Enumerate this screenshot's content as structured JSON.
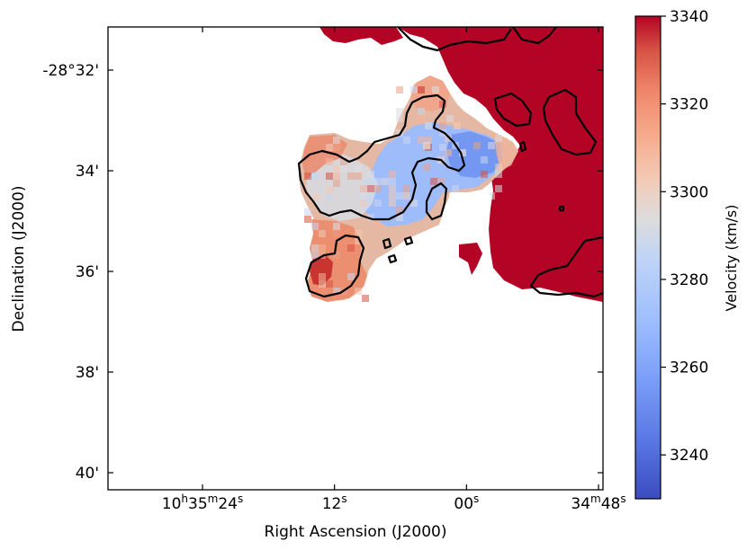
{
  "chart_data": {
    "type": "heatmap",
    "title": "",
    "xlabel": "Right Ascension (J2000)",
    "ylabel": "Declination (J2000)",
    "x_ticks": [
      {
        "pre": "10",
        "h": "h",
        "m_val": "35",
        "m": "m",
        "s_val": "24",
        "s": "s",
        "sec": 24
      },
      {
        "pre": "",
        "h": "",
        "m_val": "",
        "m": "",
        "s_val": "12",
        "s": "s",
        "sec": 12
      },
      {
        "pre": "",
        "h": "",
        "m_val": "",
        "m": "",
        "s_val": "00",
        "s": "s",
        "sec": 0
      },
      {
        "pre": "34",
        "h": "m",
        "m_val": "",
        "m": "",
        "s_val": "48",
        "s": "s",
        "sec": -12
      }
    ],
    "y_ticks": [
      {
        "label": "-28°32'",
        "arcmin": 32
      },
      {
        "label": "34'",
        "arcmin": 34
      },
      {
        "label": "36'",
        "arcmin": 36
      },
      {
        "label": "38'",
        "arcmin": 38
      },
      {
        "label": "40'",
        "arcmin": 40
      }
    ],
    "colorbar": {
      "label": "Velocity (km/s)",
      "colormap": "coolwarm",
      "range": [
        3230,
        3340
      ],
      "ticks": [
        "3340",
        "3320",
        "3300",
        "3280",
        "3260",
        "3240"
      ],
      "tick_values": [
        3340,
        3320,
        3300,
        3280,
        3260,
        3240
      ],
      "colors": {
        "low": "#3b4cc0",
        "mid": "#dddddd",
        "high": "#b40426"
      }
    },
    "contours": {
      "color": "#000000",
      "levels": 1
    },
    "grid": false
  }
}
